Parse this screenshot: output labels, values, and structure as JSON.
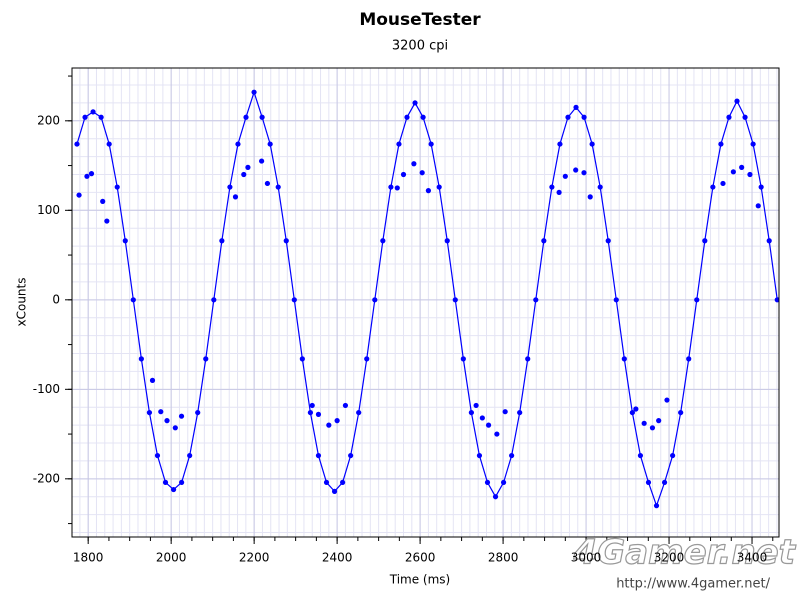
{
  "chart_data": {
    "type": "scatter",
    "title": "MouseTester",
    "subtitle": "3200 cpi",
    "x_label": "Time (ms)",
    "y_label": "xCounts",
    "xlim": [
      1761,
      3465
    ],
    "ylim": [
      -265,
      259
    ],
    "xticks": [
      1800,
      2000,
      2200,
      2400,
      2600,
      2800,
      3000,
      3200,
      3400
    ],
    "yticks": [
      -200,
      -100,
      0,
      100,
      200
    ],
    "grid": true,
    "series": [
      {
        "color": "#0000ff",
        "line": true,
        "x": [
          1773,
          1792.4,
          1811.8,
          1831.2,
          1850.6,
          1870,
          1889.4,
          1908.8,
          1928.2,
          1947.6,
          1967,
          1986.4,
          2005.8,
          2025.2,
          2044.6,
          2064,
          2083.4,
          2102.8,
          2122.2,
          2141.6,
          2161,
          2180.4,
          2199.8,
          2219.2,
          2238.6,
          2258,
          2277.4,
          2296.8,
          2316.2,
          2335.6,
          2355,
          2374.4,
          2393.8,
          2413.2,
          2432.6,
          2452,
          2471.4,
          2490.8,
          2510.2,
          2529.6,
          2549,
          2568.4,
          2587.8,
          2607.2,
          2626.6,
          2646,
          2665.4,
          2684.8,
          2704.2,
          2723.6,
          2743,
          2762.4,
          2781.8,
          2801.2,
          2820.6,
          2840,
          2859.4,
          2878.8,
          2898.2,
          2917.6,
          2937,
          2956.4,
          2975.8,
          2995.2,
          3014.6,
          3034,
          3053.4,
          3072.8,
          3092.2,
          3111.6,
          3131,
          3150.4,
          3169.8,
          3189.2,
          3208.6,
          3228,
          3247.4,
          3266.8,
          3286.2,
          3305.6,
          3325,
          3344.4,
          3363.8,
          3383.2,
          3402.6,
          3422,
          3441.4,
          3460.8
        ],
        "values": [
          174,
          204,
          210,
          204,
          174,
          126,
          66,
          0,
          -66,
          -126,
          -174,
          -204,
          -212,
          -204,
          -174,
          -126,
          -66,
          0,
          66,
          126,
          174,
          204,
          232,
          204,
          174,
          126,
          66,
          0,
          -66,
          -126,
          -174,
          -204,
          -214,
          -204,
          -174,
          -126,
          -66,
          0,
          66,
          126,
          174,
          204,
          220,
          204,
          174,
          126,
          66,
          0,
          -66,
          -126,
          -174,
          -204,
          -220,
          -204,
          -174,
          -126,
          -66,
          0,
          66,
          126,
          174,
          204,
          215,
          204,
          174,
          126,
          66,
          0,
          -66,
          -126,
          -174,
          -204,
          -230,
          -204,
          -174,
          -126,
          -66,
          0,
          66,
          126,
          174,
          204,
          222,
          204,
          174,
          126,
          66,
          0
        ]
      },
      {
        "color": "#0000ff",
        "line": false,
        "x": [
          1778,
          1797,
          1808,
          1835,
          1845,
          1955,
          1975,
          1990,
          2010,
          2025,
          2155,
          2175,
          2185,
          2218,
          2232,
          2340,
          2355,
          2380,
          2400,
          2420,
          2545,
          2560,
          2585,
          2605,
          2620,
          2735,
          2750,
          2765,
          2785,
          2805,
          2935,
          2950,
          2975,
          2995,
          3010,
          3120,
          3140,
          3160,
          3175,
          3195,
          3330,
          3355,
          3375,
          3395,
          3415
        ],
        "values": [
          117,
          138,
          141,
          110,
          88,
          -90,
          -125,
          -135,
          -143,
          -130,
          115,
          140,
          148,
          155,
          130,
          -118,
          -128,
          -140,
          -135,
          -118,
          125,
          140,
          152,
          142,
          122,
          -118,
          -132,
          -140,
          -150,
          -125,
          120,
          138,
          145,
          142,
          115,
          -122,
          -138,
          -143,
          -135,
          -112,
          130,
          143,
          148,
          140,
          105
        ]
      }
    ],
    "watermark": "4Gamer.net",
    "watermark_url": "http://www.4gamer.net/"
  }
}
